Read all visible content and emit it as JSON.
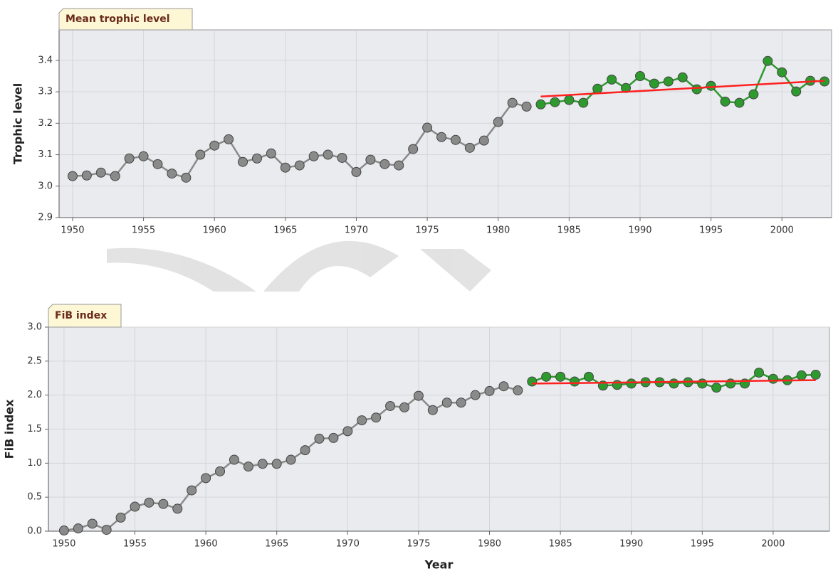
{
  "chart_data": [
    {
      "type": "line",
      "title": "Mean trophic level",
      "ylabel": "Trophic level",
      "xlim": [
        1949.05,
        2003.5
      ],
      "ylim": [
        2.9,
        3.497
      ],
      "xticks": [
        1950,
        1955,
        1960,
        1965,
        1970,
        1975,
        1980,
        1985,
        1990,
        1995,
        2000
      ],
      "yticks": [
        2.9,
        {
          "value": 3,
          "label": "3.0"
        },
        3.1,
        3.2,
        3.3,
        3.4
      ],
      "grid": true,
      "series": [
        {
          "color": "#8a8a8a",
          "marker": true,
          "x": [
            1950,
            1951,
            1952,
            1953,
            1954,
            1955,
            1956,
            1957,
            1958,
            1959,
            1960,
            1961,
            1962,
            1963,
            1964,
            1965,
            1966,
            1967,
            1968,
            1969,
            1970,
            1971,
            1972,
            1973,
            1974,
            1975,
            1976,
            1977,
            1978,
            1979,
            1980,
            1981,
            1982
          ],
          "values": [
            3.032,
            3.034,
            3.043,
            3.032,
            3.088,
            3.095,
            3.07,
            3.04,
            3.027,
            3.1,
            3.129,
            3.149,
            3.077,
            3.088,
            3.104,
            3.059,
            3.066,
            3.095,
            3.1,
            3.09,
            3.045,
            3.084,
            3.07,
            3.066,
            3.118,
            3.186,
            3.156,
            3.147,
            3.122,
            3.145,
            3.204,
            3.265,
            3.253
          ]
        },
        {
          "color": "#2e9a2e",
          "marker": true,
          "x": [
            1983,
            1984,
            1985,
            1986,
            1987,
            1988,
            1989,
            1990,
            1991,
            1992,
            1993,
            1994,
            1995,
            1996,
            1997,
            1998,
            1999,
            2000,
            2001,
            2002,
            2003
          ],
          "values": [
            3.26,
            3.267,
            3.274,
            3.265,
            3.31,
            3.339,
            3.312,
            3.35,
            3.326,
            3.333,
            3.346,
            3.308,
            3.319,
            3.269,
            3.265,
            3.292,
            3.398,
            3.362,
            3.301,
            3.335,
            3.333
          ]
        },
        {
          "color": "#ff2020",
          "marker": false,
          "x": [
            1983,
            2003
          ],
          "values": [
            3.285,
            3.335
          ]
        }
      ]
    },
    {
      "type": "line",
      "title": "FiB index",
      "ylabel": "FiB index",
      "xlabel": "Year",
      "xlim": [
        1948.9,
        2003.97
      ],
      "ylim": [
        0,
        3
      ],
      "xticks": [
        1950,
        1955,
        1960,
        1965,
        1970,
        1975,
        1980,
        1985,
        1990,
        1995,
        2000
      ],
      "yticks": [
        {
          "value": 0,
          "label": "0.0"
        },
        0.5,
        {
          "value": 1,
          "label": "1.0"
        },
        1.5,
        {
          "value": 2,
          "label": "2.0"
        },
        2.5,
        {
          "value": 3,
          "label": "3.0"
        }
      ],
      "grid": true,
      "series": [
        {
          "color": "#8a8a8a",
          "marker": true,
          "x": [
            1950,
            1951,
            1952,
            1953,
            1954,
            1955,
            1956,
            1957,
            1958,
            1959,
            1960,
            1961,
            1962,
            1963,
            1964,
            1965,
            1966,
            1967,
            1968,
            1969,
            1970,
            1971,
            1972,
            1973,
            1974,
            1975,
            1976,
            1977,
            1978,
            1979,
            1980,
            1981,
            1982
          ],
          "values": [
            0.01,
            0.04,
            0.11,
            0.02,
            0.2,
            0.36,
            0.42,
            0.4,
            0.33,
            0.6,
            0.78,
            0.88,
            1.05,
            0.95,
            0.99,
            0.99,
            1.05,
            1.19,
            1.36,
            1.37,
            1.47,
            1.63,
            1.67,
            1.84,
            1.82,
            1.99,
            1.78,
            1.89,
            1.89,
            2.0,
            2.06,
            2.13,
            2.07
          ]
        },
        {
          "color": "#2e9a2e",
          "marker": true,
          "x": [
            1983,
            1984,
            1985,
            1986,
            1987,
            1988,
            1989,
            1990,
            1991,
            1992,
            1993,
            1994,
            1995,
            1996,
            1997,
            1998,
            1999,
            2000,
            2001,
            2002,
            2003
          ],
          "values": [
            2.2,
            2.27,
            2.27,
            2.2,
            2.27,
            2.14,
            2.15,
            2.17,
            2.19,
            2.19,
            2.17,
            2.19,
            2.17,
            2.11,
            2.17,
            2.17,
            2.33,
            2.24,
            2.22,
            2.29,
            2.3
          ]
        },
        {
          "color": "#ff2020",
          "marker": false,
          "x": [
            1983,
            2003
          ],
          "values": [
            2.17,
            2.22
          ]
        }
      ]
    }
  ]
}
